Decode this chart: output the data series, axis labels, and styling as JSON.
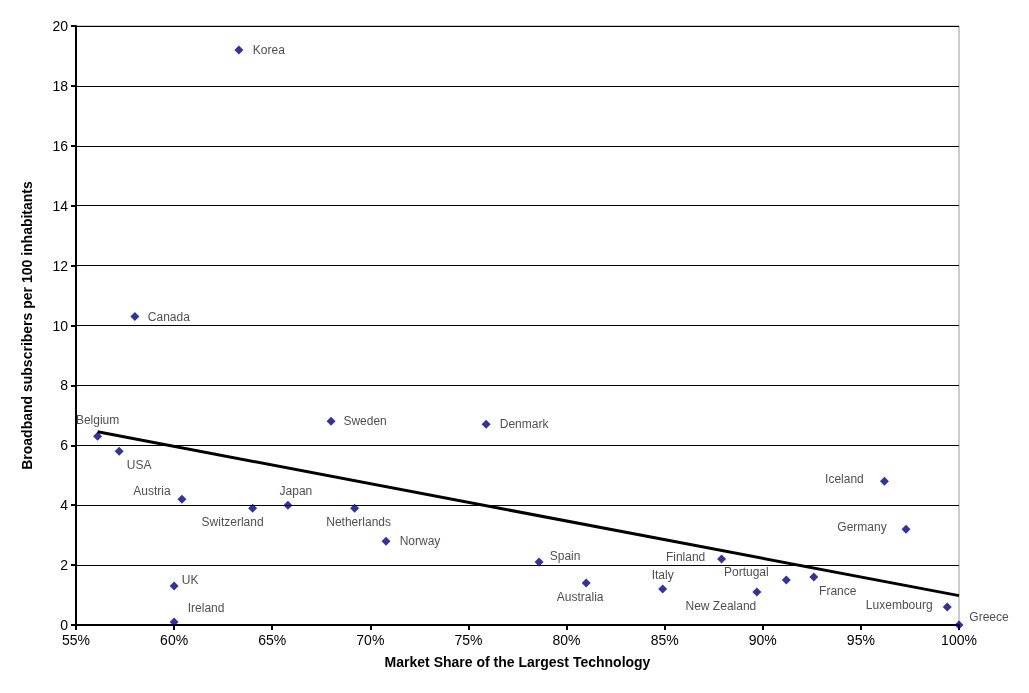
{
  "chart_data": {
    "type": "scatter",
    "xlabel": "Market Share of the Largest Technology",
    "ylabel": "Broadband subscribers per 100 inhabitants",
    "xlim": [
      55,
      100
    ],
    "xticks": [
      {
        "value": 55,
        "label": "55%"
      },
      {
        "value": 60,
        "label": "60%"
      },
      {
        "value": 65,
        "label": "65%"
      },
      {
        "value": 70,
        "label": "70%"
      },
      {
        "value": 75,
        "label": "75%"
      },
      {
        "value": 80,
        "label": "80%"
      },
      {
        "value": 85,
        "label": "85%"
      },
      {
        "value": 90,
        "label": "90%"
      },
      {
        "value": 95,
        "label": "95%"
      },
      {
        "value": 100,
        "label": "100%"
      }
    ],
    "ylim": [
      0,
      20
    ],
    "yticks": [
      0,
      2,
      4,
      6,
      8,
      10,
      12,
      14,
      16,
      18,
      20
    ],
    "grid": "y",
    "marker": "diamond",
    "series": [
      {
        "color": "#000080",
        "x": [
          63.3,
          58.0,
          56.1,
          57.2,
          60.4,
          60.0,
          60.0,
          64.0,
          65.8,
          69.2,
          70.8,
          68.0,
          75.9,
          78.6,
          81.0,
          84.9,
          87.9,
          89.7,
          91.2,
          92.6,
          99.4,
          100.0,
          96.2,
          97.3
        ],
        "values": [
          19.2,
          10.3,
          6.3,
          5.8,
          4.2,
          1.3,
          0.1,
          3.9,
          4.0,
          3.9,
          2.8,
          6.8,
          6.7,
          2.1,
          1.4,
          1.2,
          2.2,
          1.1,
          1.5,
          1.6,
          0.6,
          0.0,
          4.8,
          3.2
        ]
      },
      {
        "type": "line",
        "marker": "none",
        "color": "#000000",
        "x": [
          56.1,
          100.0
        ],
        "values": [
          6.45,
          0.98
        ]
      }
    ],
    "annotations": [
      {
        "text": "Korea",
        "x": 63.3,
        "y": 19.2
      },
      {
        "text": "Canada",
        "x": 58.0,
        "y": 10.3
      },
      {
        "text": "Belgium",
        "x": 56.1,
        "y": 6.3
      },
      {
        "text": "USA",
        "x": 57.2,
        "y": 5.8
      },
      {
        "text": "Austria",
        "x": 60.4,
        "y": 4.2
      },
      {
        "text": "UK",
        "x": 60.0,
        "y": 1.3
      },
      {
        "text": "Ireland",
        "x": 60.0,
        "y": 0.1
      },
      {
        "text": "Switzerland",
        "x": 64.0,
        "y": 3.9
      },
      {
        "text": "Japan",
        "x": 65.8,
        "y": 4.0
      },
      {
        "text": "Netherlands",
        "x": 69.2,
        "y": 3.9
      },
      {
        "text": "Norway",
        "x": 70.8,
        "y": 2.8
      },
      {
        "text": "Sweden",
        "x": 68.0,
        "y": 6.8
      },
      {
        "text": "Denmark",
        "x": 75.9,
        "y": 6.7
      },
      {
        "text": "Spain",
        "x": 78.6,
        "y": 2.1
      },
      {
        "text": "Australia",
        "x": 81.0,
        "y": 1.4
      },
      {
        "text": "Italy",
        "x": 84.9,
        "y": 1.2
      },
      {
        "text": "Finland",
        "x": 87.9,
        "y": 2.2
      },
      {
        "text": "New Zealand",
        "x": 89.7,
        "y": 1.1
      },
      {
        "text": "Portugal",
        "x": 91.2,
        "y": 1.5
      },
      {
        "text": "France",
        "x": 92.6,
        "y": 1.6
      },
      {
        "text": "Luxembourg",
        "x": 99.4,
        "y": 0.6
      },
      {
        "text": "Greece",
        "x": 100.0,
        "y": 0.0
      },
      {
        "text": "Iceland",
        "x": 96.2,
        "y": 4.8
      },
      {
        "text": "Germany",
        "x": 97.3,
        "y": 3.2
      }
    ]
  }
}
